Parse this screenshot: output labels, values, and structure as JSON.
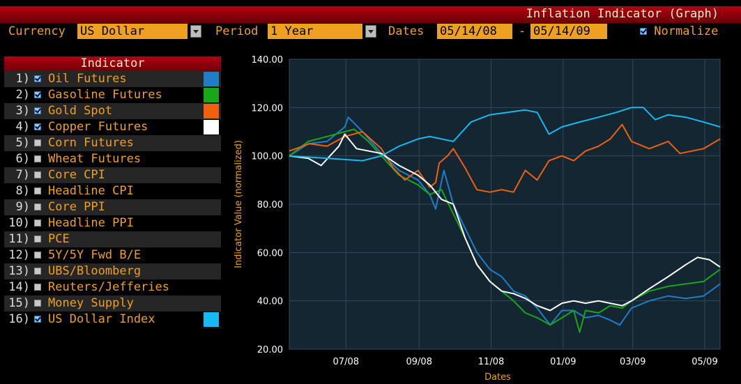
{
  "window_title": "Inflation Indicator (Graph)",
  "controls": {
    "currency_label": "Currency",
    "currency_value": "US Dollar",
    "period_label": "Period",
    "period_value": "1 Year",
    "dates_label": "Dates",
    "date_from": "05/14/08",
    "date_sep": "-",
    "date_to": "05/14/09",
    "normalize_label": "Normalize",
    "normalize_checked": true
  },
  "indicator_panel": {
    "header": "Indicator",
    "items": [
      {
        "num": "1)",
        "name": "Oil Futures",
        "checked": true,
        "color": "#1e7fc8"
      },
      {
        "num": "2)",
        "name": "Gasoline Futures",
        "checked": true,
        "color": "#1aa51a"
      },
      {
        "num": "3)",
        "name": "Gold Spot",
        "checked": true,
        "color": "#f06010"
      },
      {
        "num": "4)",
        "name": "Copper Futures",
        "checked": true,
        "color": "#ffffff"
      },
      {
        "num": "5)",
        "name": "Corn Futures",
        "checked": false,
        "color": ""
      },
      {
        "num": "6)",
        "name": "Wheat Futures",
        "checked": false,
        "color": ""
      },
      {
        "num": "7)",
        "name": "Core CPI",
        "checked": false,
        "color": ""
      },
      {
        "num": "8)",
        "name": "Headline CPI",
        "checked": false,
        "color": ""
      },
      {
        "num": "9)",
        "name": "Core PPI",
        "checked": false,
        "color": ""
      },
      {
        "num": "10)",
        "name": "Headline PPI",
        "checked": false,
        "color": ""
      },
      {
        "num": "11)",
        "name": "PCE",
        "checked": false,
        "color": ""
      },
      {
        "num": "12)",
        "name": "5Y/5Y Fwd B/E",
        "checked": false,
        "color": ""
      },
      {
        "num": "13)",
        "name": "UBS/Bloomberg",
        "checked": false,
        "color": ""
      },
      {
        "num": "14)",
        "name": "Reuters/Jefferies",
        "checked": false,
        "color": ""
      },
      {
        "num": "15)",
        "name": "Money Supply",
        "checked": false,
        "color": ""
      },
      {
        "num": "16)",
        "name": "US Dollar Index",
        "checked": true,
        "color": "#18b8f0"
      }
    ]
  },
  "chart_data": {
    "type": "line",
    "xlabel": "Dates",
    "ylabel": "Indicator Value (normalized)",
    "ylim": [
      20,
      140
    ],
    "yticks": [
      "140.00",
      "120.00",
      "100.00",
      "80.00",
      "60.00",
      "40.00",
      "20.00"
    ],
    "xlim": [
      "2008-05-14",
      "2009-05-14"
    ],
    "xticks": [
      {
        "label": "07/08",
        "date": "2008-07-01"
      },
      {
        "label": "09/08",
        "date": "2008-09-01"
      },
      {
        "label": "11/08",
        "date": "2008-11-01"
      },
      {
        "label": "01/09",
        "date": "2009-01-01"
      },
      {
        "label": "03/09",
        "date": "2009-03-01"
      },
      {
        "label": "05/09",
        "date": "2009-05-01"
      }
    ],
    "grid": true,
    "background": "#152633",
    "series": [
      {
        "name": "Oil Futures",
        "color": "#1e7fc8",
        "points": [
          [
            "2008-05-14",
            100
          ],
          [
            "2008-05-30",
            105
          ],
          [
            "2008-06-15",
            106
          ],
          [
            "2008-06-30",
            112
          ],
          [
            "2008-07-03",
            116
          ],
          [
            "2008-07-15",
            110
          ],
          [
            "2008-07-31",
            101
          ],
          [
            "2008-08-15",
            94
          ],
          [
            "2008-08-31",
            90
          ],
          [
            "2008-09-10",
            84
          ],
          [
            "2008-09-15",
            78
          ],
          [
            "2008-09-22",
            94
          ],
          [
            "2008-09-30",
            80
          ],
          [
            "2008-10-10",
            70
          ],
          [
            "2008-10-20",
            60
          ],
          [
            "2008-10-31",
            53
          ],
          [
            "2008-11-10",
            50
          ],
          [
            "2008-11-20,",
            44
          ],
          [
            "2008-11-30",
            42
          ],
          [
            "2008-12-10",
            37
          ],
          [
            "2008-12-21",
            30
          ],
          [
            "2008-12-31",
            36
          ],
          [
            "2009-01-10",
            36
          ],
          [
            "2009-01-20",
            33
          ],
          [
            "2009-01-31",
            34
          ],
          [
            "2009-02-10",
            32
          ],
          [
            "2009-02-18",
            30
          ],
          [
            "2009-02-28",
            37
          ],
          [
            "2009-03-15",
            40
          ],
          [
            "2009-03-31",
            42
          ],
          [
            "2009-04-15",
            41
          ],
          [
            "2009-04-30",
            42
          ],
          [
            "2009-05-14",
            47
          ]
        ]
      },
      {
        "name": "Gasoline Futures",
        "color": "#1aa51a",
        "points": [
          [
            "2008-05-14",
            100
          ],
          [
            "2008-05-30",
            106
          ],
          [
            "2008-06-15",
            108
          ],
          [
            "2008-06-30",
            110
          ],
          [
            "2008-07-08",
            111
          ],
          [
            "2008-07-20",
            106
          ],
          [
            "2008-07-31",
            100
          ],
          [
            "2008-08-15",
            92
          ],
          [
            "2008-08-31",
            88
          ],
          [
            "2008-09-10",
            84
          ],
          [
            "2008-09-20",
            86
          ],
          [
            "2008-09-30",
            76
          ],
          [
            "2008-10-10",
            66
          ],
          [
            "2008-10-20",
            55
          ],
          [
            "2008-10-31",
            48
          ],
          [
            "2008-11-10",
            44
          ],
          [
            "2008-11-20",
            40
          ],
          [
            "2008-11-30",
            35
          ],
          [
            "2008-12-10",
            33
          ],
          [
            "2008-12-21",
            30
          ],
          [
            "2008-12-31",
            33
          ],
          [
            "2009-01-10",
            36
          ],
          [
            "2009-01-15",
            27
          ],
          [
            "2009-01-20",
            36
          ],
          [
            "2009-01-31",
            35
          ],
          [
            "2009-02-10",
            38
          ],
          [
            "2009-02-20",
            37
          ],
          [
            "2009-02-28",
            40
          ],
          [
            "2009-03-15",
            44
          ],
          [
            "2009-03-31",
            46
          ],
          [
            "2009-04-15",
            47
          ],
          [
            "2009-04-30",
            48
          ],
          [
            "2009-05-14",
            53
          ]
        ]
      },
      {
        "name": "Gold Spot",
        "color": "#f06010",
        "points": [
          [
            "2008-05-14",
            102
          ],
          [
            "2008-05-31",
            105
          ],
          [
            "2008-06-15",
            104
          ],
          [
            "2008-06-30",
            108
          ],
          [
            "2008-07-15",
            110
          ],
          [
            "2008-07-31",
            103
          ],
          [
            "2008-08-10",
            95
          ],
          [
            "2008-08-20",
            90
          ],
          [
            "2008-08-31",
            94
          ],
          [
            "2008-09-10",
            87
          ],
          [
            "2008-09-15",
            89
          ],
          [
            "2008-09-18",
            97
          ],
          [
            "2008-09-25",
            100
          ],
          [
            "2008-09-30",
            103
          ],
          [
            "2008-10-10",
            95
          ],
          [
            "2008-10-20",
            86
          ],
          [
            "2008-10-31",
            85
          ],
          [
            "2008-11-10",
            86
          ],
          [
            "2008-11-20",
            85
          ],
          [
            "2008-11-30",
            94
          ],
          [
            "2008-12-10",
            90
          ],
          [
            "2008-12-20",
            98
          ],
          [
            "2008-12-31",
            100
          ],
          [
            "2009-01-10",
            98
          ],
          [
            "2009-01-20",
            102
          ],
          [
            "2009-01-31",
            104
          ],
          [
            "2009-02-10",
            107
          ],
          [
            "2009-02-20",
            113
          ],
          [
            "2009-02-28",
            106
          ],
          [
            "2009-03-15",
            103
          ],
          [
            "2009-03-31",
            106
          ],
          [
            "2009-04-10",
            101
          ],
          [
            "2009-04-30",
            103
          ],
          [
            "2009-05-14",
            107
          ]
        ]
      },
      {
        "name": "Copper Futures",
        "color": "#ffffff",
        "points": [
          [
            "2008-05-14",
            100
          ],
          [
            "2008-05-30",
            99
          ],
          [
            "2008-06-10",
            96
          ],
          [
            "2008-06-25",
            104
          ],
          [
            "2008-06-30",
            109
          ],
          [
            "2008-07-10",
            103
          ],
          [
            "2008-07-31",
            101
          ],
          [
            "2008-08-15",
            96
          ],
          [
            "2008-08-31",
            92
          ],
          [
            "2008-09-10",
            88
          ],
          [
            "2008-09-20",
            82
          ],
          [
            "2008-09-30",
            80
          ],
          [
            "2008-10-10",
            66
          ],
          [
            "2008-10-20",
            55
          ],
          [
            "2008-10-31",
            48
          ],
          [
            "2008-11-10",
            44
          ],
          [
            "2008-11-20",
            43
          ],
          [
            "2008-11-30",
            41
          ],
          [
            "2008-12-10",
            38
          ],
          [
            "2008-12-21",
            36
          ],
          [
            "2008-12-31",
            39
          ],
          [
            "2009-01-10",
            40
          ],
          [
            "2009-01-20",
            39
          ],
          [
            "2009-01-31",
            40
          ],
          [
            "2009-02-10",
            39
          ],
          [
            "2009-02-20",
            38
          ],
          [
            "2009-02-28",
            40
          ],
          [
            "2009-03-15",
            45
          ],
          [
            "2009-03-31",
            50
          ],
          [
            "2009-04-15",
            55
          ],
          [
            "2009-04-25",
            58
          ],
          [
            "2009-05-05",
            57
          ],
          [
            "2009-05-14",
            54
          ]
        ]
      },
      {
        "name": "US Dollar Index",
        "color": "#18b8f0",
        "points": [
          [
            "2008-05-14",
            100
          ],
          [
            "2008-06-15",
            99
          ],
          [
            "2008-07-15",
            98
          ],
          [
            "2008-07-31",
            100
          ],
          [
            "2008-08-15",
            104
          ],
          [
            "2008-08-31",
            107
          ],
          [
            "2008-09-10",
            108
          ],
          [
            "2008-09-30",
            106
          ],
          [
            "2008-10-15",
            114
          ],
          [
            "2008-10-31",
            117
          ],
          [
            "2008-11-15",
            118
          ],
          [
            "2008-11-30",
            119
          ],
          [
            "2008-12-10",
            118
          ],
          [
            "2008-12-20",
            109
          ],
          [
            "2008-12-31",
            112
          ],
          [
            "2009-01-15",
            114
          ],
          [
            "2009-01-31",
            116
          ],
          [
            "2009-02-15",
            118
          ],
          [
            "2009-02-28",
            120
          ],
          [
            "2009-03-10",
            120
          ],
          [
            "2009-03-20",
            115
          ],
          [
            "2009-03-31",
            117
          ],
          [
            "2009-04-15",
            116
          ],
          [
            "2009-04-30",
            114
          ],
          [
            "2009-05-14",
            112
          ]
        ]
      }
    ]
  }
}
